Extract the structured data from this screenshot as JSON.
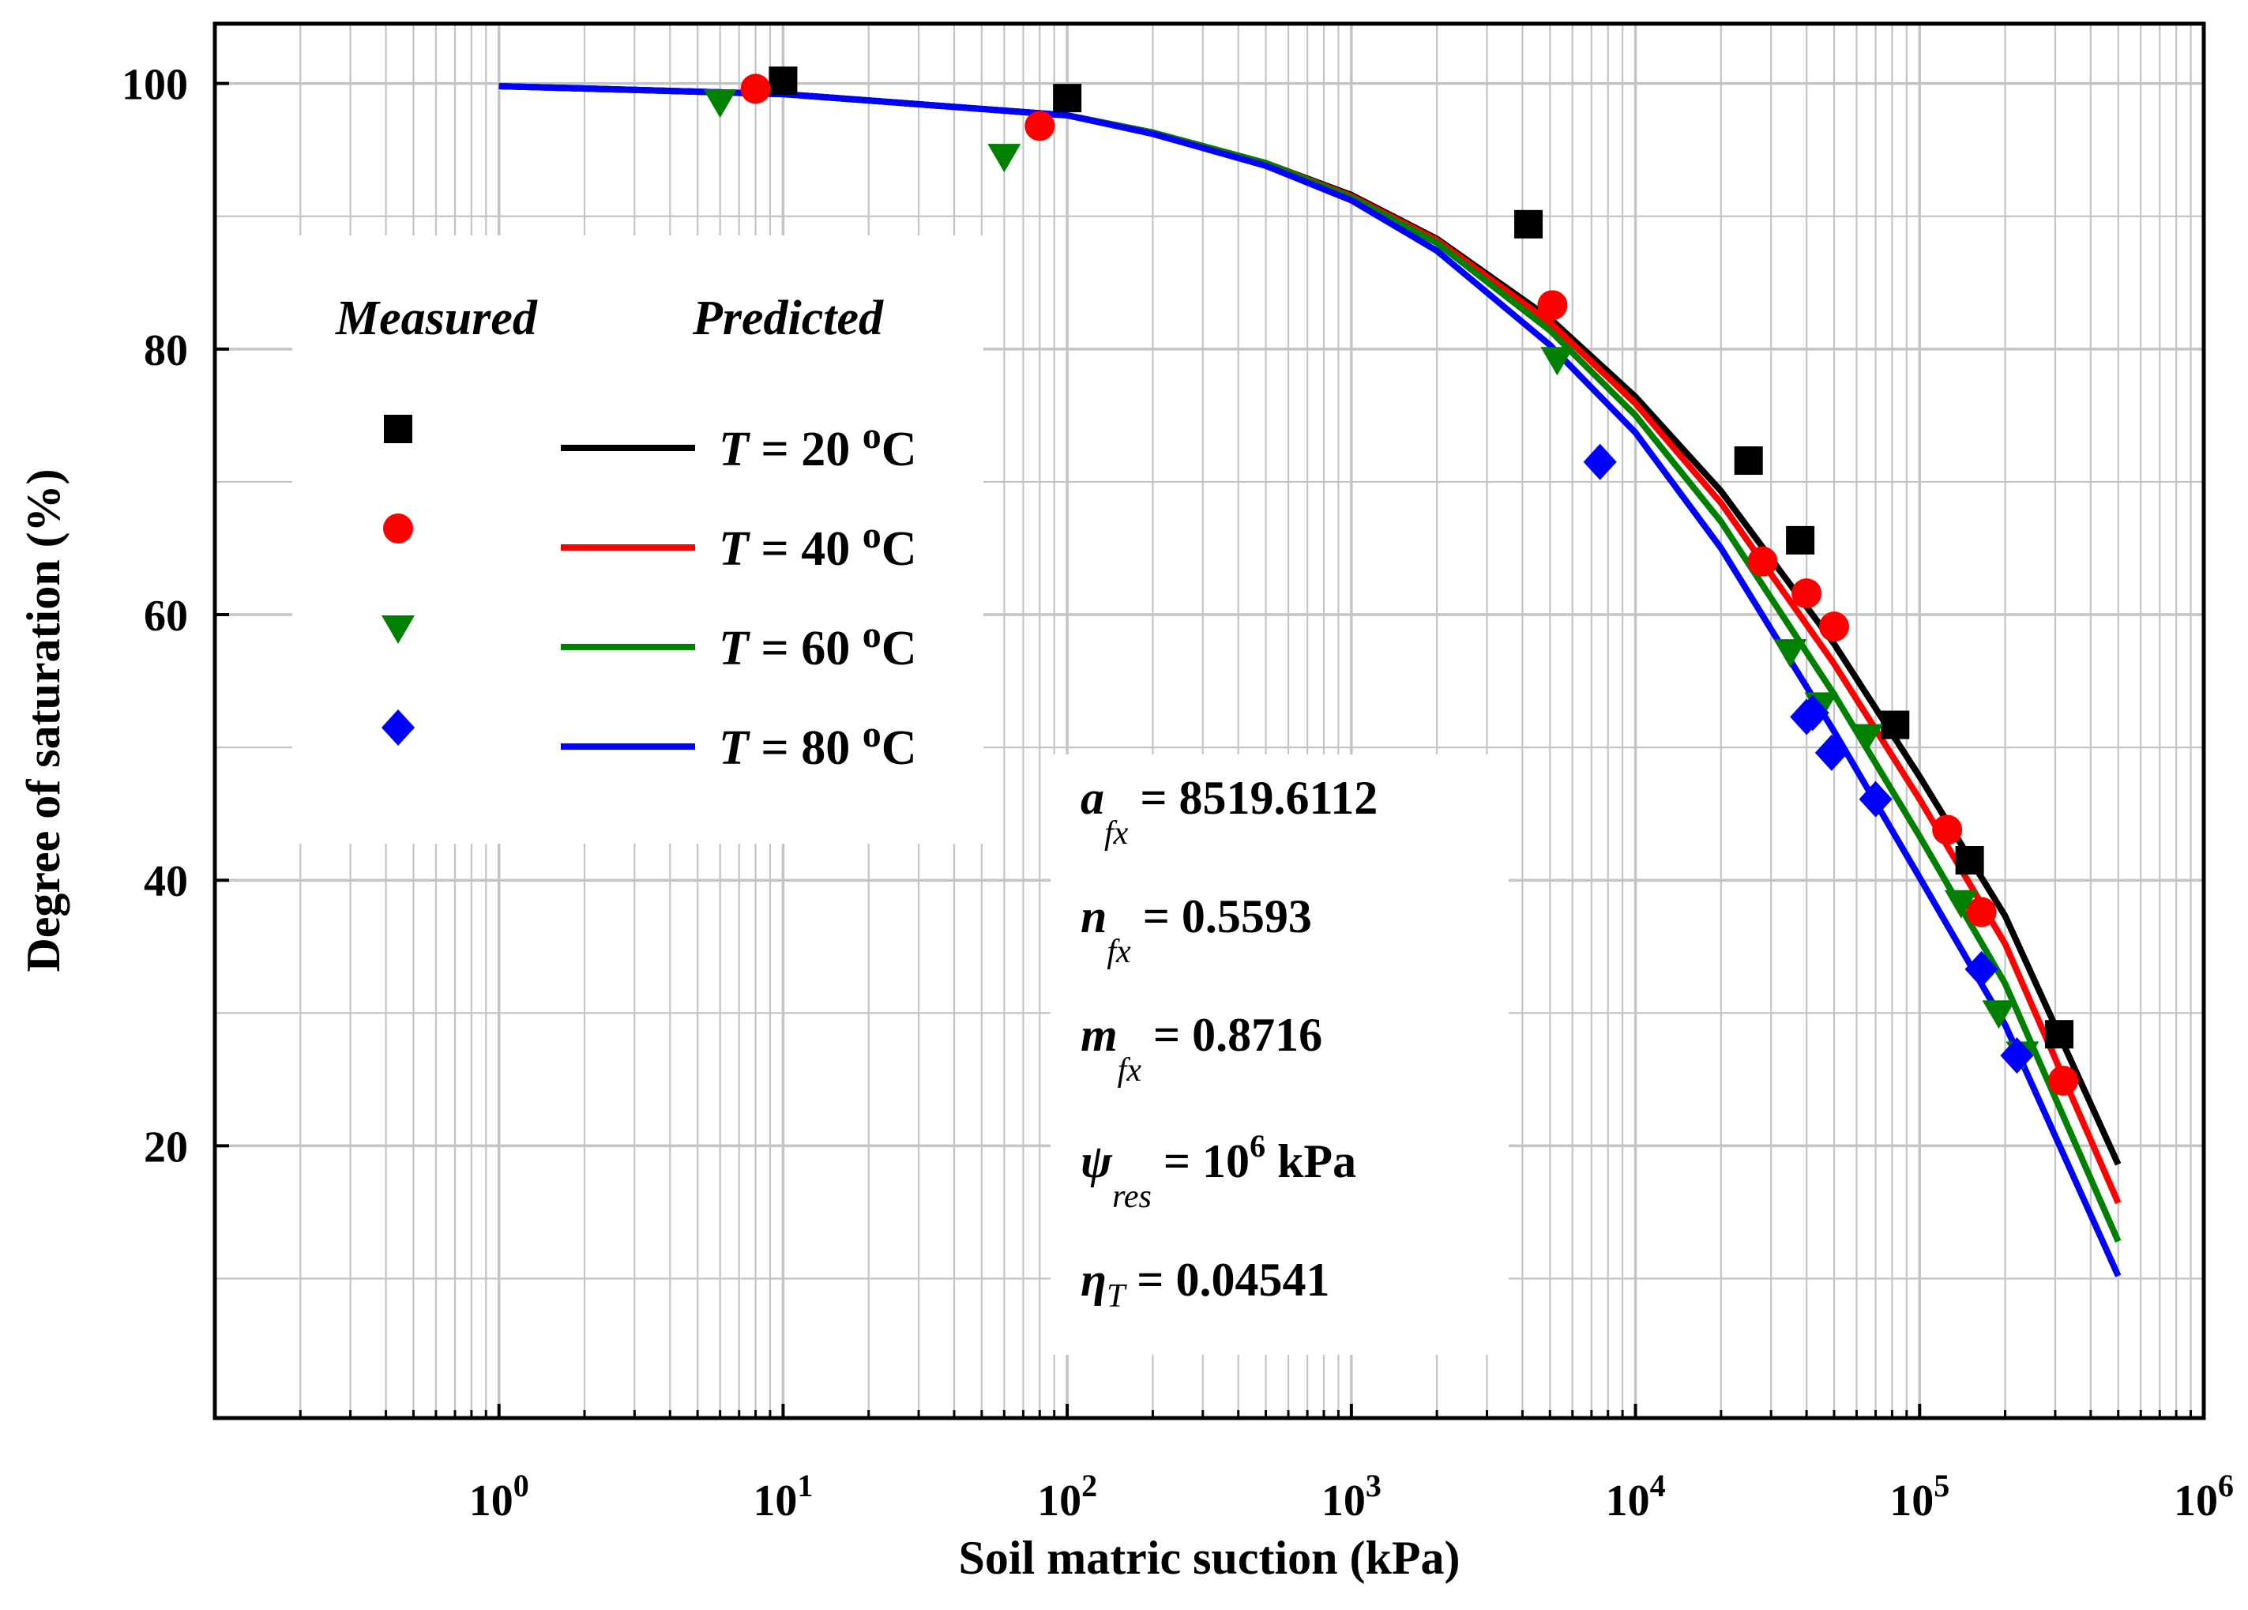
{
  "chart_data": {
    "type": "scatter",
    "title": "",
    "xlabel": "Soil matric suction (kPa)",
    "ylabel": "Degree of saturation (%)",
    "xscale": "log",
    "xlim": [
      0.1,
      1000000
    ],
    "ylim": [
      -0.5,
      104.5
    ],
    "x_ticks": [
      {
        "value": 1,
        "base": "10",
        "exp": "0"
      },
      {
        "value": 10,
        "base": "10",
        "exp": "1"
      },
      {
        "value": 100,
        "base": "10",
        "exp": "2"
      },
      {
        "value": 1000,
        "base": "10",
        "exp": "3"
      },
      {
        "value": 10000,
        "base": "10",
        "exp": "4"
      },
      {
        "value": 100000,
        "base": "10",
        "exp": "5"
      },
      {
        "value": 1000000,
        "base": "10",
        "exp": "6"
      }
    ],
    "y_ticks": [
      {
        "value": 20,
        "label": "20"
      },
      {
        "value": 40,
        "label": "40"
      },
      {
        "value": 60,
        "label": "60"
      },
      {
        "value": 80,
        "label": "80"
      },
      {
        "value": 100,
        "label": "100"
      }
    ],
    "grid": true,
    "legend": {
      "position": "upper-left",
      "measured_header": "Measured",
      "predicted_header": "Predicted",
      "entries": [
        {
          "var": "T",
          "eq": " = 20 ",
          "sup": "o",
          "unit": "C"
        },
        {
          "var": "T",
          "eq": " = 40 ",
          "sup": "o",
          "unit": "C"
        },
        {
          "var": "T",
          "eq": " = 60 ",
          "sup": "o",
          "unit": "C"
        },
        {
          "var": "T",
          "eq": " = 80 ",
          "sup": "o",
          "unit": "C"
        }
      ]
    },
    "parameters": [
      {
        "sym": "a",
        "sub": "fx",
        "text": " = 8519.6112",
        "sup": ""
      },
      {
        "sym": "n",
        "sub": "fx",
        "text": " = 0.5593",
        "sup": ""
      },
      {
        "sym": "m",
        "sub": "fx",
        "text": " = 0.8716",
        "sup": ""
      },
      {
        "sym": "ψ",
        "sub": "res",
        "text": " = 10",
        "sup": "6",
        "tail": " kPa"
      },
      {
        "sym": "η",
        "sub": "T",
        "text": " = 0.04541",
        "sup": ""
      }
    ],
    "series": [
      {
        "name": "T = 20 oC",
        "color": "#000000",
        "marker": "square",
        "measured": [
          [
            10,
            100.2
          ],
          [
            100,
            98.9
          ],
          [
            4200,
            89.4
          ],
          [
            25000,
            71.6
          ],
          [
            38000,
            65.6
          ],
          [
            82000,
            51.7
          ],
          [
            150000,
            41.5
          ],
          [
            310000,
            28.4
          ]
        ],
        "predicted": [
          [
            1,
            99.8
          ],
          [
            10,
            99.2
          ],
          [
            100,
            97.6
          ],
          [
            200,
            96.3
          ],
          [
            500,
            94
          ],
          [
            1000,
            91.6
          ],
          [
            2000,
            88.3
          ],
          [
            5000,
            82.3
          ],
          [
            10000,
            76.4
          ],
          [
            20000,
            69.3
          ],
          [
            50000,
            57.8
          ],
          [
            100000,
            47.8
          ],
          [
            200000,
            37.3
          ],
          [
            500000,
            18.6
          ]
        ]
      },
      {
        "name": "T = 40 oC",
        "color": "#ff0000",
        "marker": "circle",
        "measured": [
          [
            8,
            99.6
          ],
          [
            80,
            96.8
          ],
          [
            5100,
            83.3
          ],
          [
            28000,
            64
          ],
          [
            40000,
            61.6
          ],
          [
            50000,
            59.1
          ],
          [
            125000,
            43.8
          ],
          [
            165000,
            37.6
          ],
          [
            320000,
            24.9
          ]
        ],
        "predicted": [
          [
            1,
            99.8
          ],
          [
            10,
            99.2
          ],
          [
            100,
            97.6
          ],
          [
            200,
            96.3
          ],
          [
            500,
            94
          ],
          [
            1000,
            91.5
          ],
          [
            2000,
            88.2
          ],
          [
            5000,
            82
          ],
          [
            10000,
            75.9
          ],
          [
            20000,
            68.4
          ],
          [
            50000,
            56.3
          ],
          [
            100000,
            46.1
          ],
          [
            200000,
            35.2
          ],
          [
            500000,
            15.7
          ]
        ]
      },
      {
        "name": "T = 60 oC",
        "color": "#008000",
        "marker": "triangle-down",
        "measured": [
          [
            6,
            98.6
          ],
          [
            60,
            94.5
          ],
          [
            5300,
            79.2
          ],
          [
            35000,
            57.2
          ],
          [
            45000,
            53.2
          ],
          [
            65000,
            50.8
          ],
          [
            140000,
            38.3
          ],
          [
            190000,
            30
          ],
          [
            230000,
            26.9
          ]
        ],
        "predicted": [
          [
            1,
            99.8
          ],
          [
            10,
            99.2
          ],
          [
            100,
            97.6
          ],
          [
            200,
            96.3
          ],
          [
            500,
            94
          ],
          [
            1000,
            91.4
          ],
          [
            2000,
            88
          ],
          [
            5000,
            81.4
          ],
          [
            10000,
            75
          ],
          [
            20000,
            67
          ],
          [
            50000,
            54
          ],
          [
            100000,
            43.3
          ],
          [
            200000,
            32.2
          ],
          [
            500000,
            12.8
          ]
        ]
      },
      {
        "name": "T = 80 oC",
        "color": "#0000ff",
        "marker": "diamond",
        "measured": [
          [
            7500,
            71.5
          ],
          [
            40000,
            52.3
          ],
          [
            42000,
            52.6
          ],
          [
            49000,
            49.6
          ],
          [
            70000,
            46.1
          ],
          [
            165000,
            33.3
          ],
          [
            220000,
            26.8
          ]
        ],
        "predicted": [
          [
            1,
            99.8
          ],
          [
            10,
            99.2
          ],
          [
            100,
            97.6
          ],
          [
            200,
            96.2
          ],
          [
            500,
            93.8
          ],
          [
            1000,
            91.2
          ],
          [
            2000,
            87.4
          ],
          [
            5000,
            80.3
          ],
          [
            10000,
            73.7
          ],
          [
            20000,
            65
          ],
          [
            50000,
            51.2
          ],
          [
            100000,
            40.2
          ],
          [
            200000,
            29.1
          ],
          [
            500000,
            10.2
          ]
        ]
      }
    ]
  }
}
